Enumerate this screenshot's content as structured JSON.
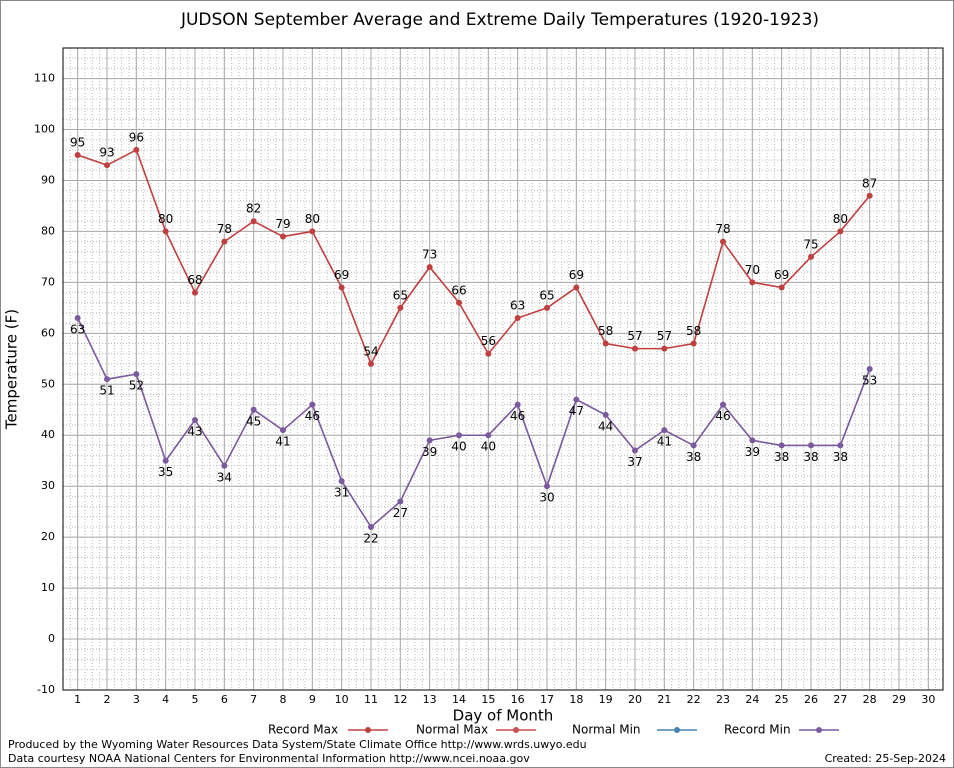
{
  "chart_data": {
    "type": "line",
    "title": "JUDSON September Average and Extreme Daily Temperatures (1920-1923)",
    "x_label": "Day of Month",
    "y_label": "Temperature (F)",
    "x": [
      1,
      2,
      3,
      4,
      5,
      6,
      7,
      8,
      9,
      10,
      11,
      12,
      13,
      14,
      15,
      16,
      17,
      18,
      19,
      20,
      21,
      22,
      23,
      24,
      25,
      26,
      27,
      28,
      29,
      30
    ],
    "xlim": [
      0.5,
      30.5
    ],
    "xticks": [
      1,
      2,
      3,
      4,
      5,
      6,
      7,
      8,
      9,
      10,
      11,
      12,
      13,
      14,
      15,
      16,
      17,
      18,
      19,
      20,
      21,
      22,
      23,
      24,
      25,
      26,
      27,
      28,
      29,
      30
    ],
    "ylim": [
      -10,
      116
    ],
    "yticks": [
      -10,
      0,
      10,
      20,
      30,
      40,
      50,
      60,
      70,
      80,
      90,
      100,
      110
    ],
    "grid": true,
    "series": [
      {
        "name": "Record Max",
        "color": "#c04040",
        "values": [
          95,
          93,
          96,
          80,
          68,
          78,
          82,
          79,
          80,
          69,
          54,
          65,
          73,
          66,
          56,
          63,
          65,
          69,
          58,
          57,
          57,
          58,
          78,
          70,
          69,
          75,
          80,
          87,
          null,
          null
        ]
      },
      {
        "name": "Normal Max",
        "color": "#c85050",
        "values": [
          null,
          null,
          null,
          null,
          null,
          null,
          null,
          null,
          null,
          null,
          null,
          null,
          null,
          null,
          null,
          null,
          null,
          null,
          null,
          null,
          null,
          null,
          null,
          null,
          null,
          null,
          null,
          null,
          null,
          null
        ]
      },
      {
        "name": "Normal Min",
        "color": "#4682b4",
        "values": [
          null,
          null,
          null,
          null,
          null,
          null,
          null,
          null,
          null,
          null,
          null,
          null,
          null,
          null,
          null,
          null,
          null,
          null,
          null,
          null,
          null,
          null,
          null,
          null,
          null,
          null,
          null,
          null,
          null,
          null
        ]
      },
      {
        "name": "Record Min",
        "color": "#7a5a9e",
        "values": [
          63,
          51,
          52,
          35,
          43,
          34,
          45,
          41,
          46,
          31,
          22,
          27,
          39,
          40,
          40,
          46,
          30,
          47,
          44,
          37,
          41,
          38,
          46,
          39,
          38,
          38,
          38,
          53,
          null,
          null
        ]
      }
    ],
    "footer_left": [
      "Produced by the Wyoming Water Resources Data System/State Climate Office http://www.wrds.uwyo.edu",
      "Data courtesy NOAA National Centers for Environmental Information http://www.ncei.noaa.gov"
    ],
    "footer_right": "Created:  25-Sep-2024"
  }
}
